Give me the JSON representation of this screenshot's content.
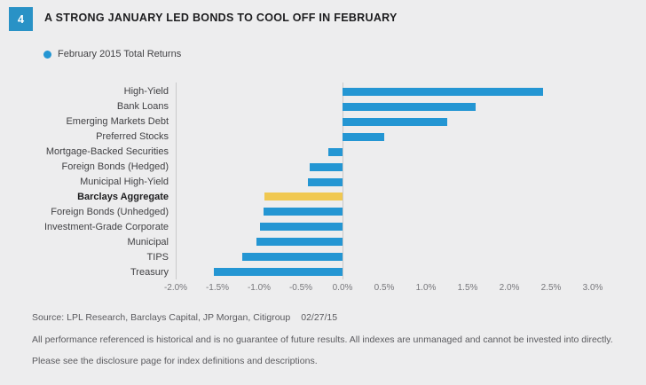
{
  "header": {
    "badge": "4",
    "title": "A STRONG JANUARY LED BONDS TO COOL OFF IN FEBRUARY"
  },
  "legend": {
    "label": "February 2015 Total Returns"
  },
  "chart_data": {
    "type": "bar",
    "orientation": "horizontal",
    "title": "A STRONG JANUARY LED BONDS TO COOL OFF IN FEBRUARY",
    "legend_entry": "February 2015 Total Returns",
    "categories": [
      "High-Yield",
      "Bank Loans",
      "Emerging Markets Debt",
      "Preferred Stocks",
      "Mortgage-Backed Securities",
      "Foreign Bonds (Hedged)",
      "Municipal High-Yield",
      "Barclays Aggregate",
      "Foreign Bonds (Unhedged)",
      "Investment-Grade Corporate",
      "Municipal",
      "TIPS",
      "Treasury"
    ],
    "values": [
      2.4,
      1.6,
      1.25,
      0.5,
      -0.17,
      -0.39,
      -0.41,
      -0.94,
      -0.95,
      -0.99,
      -1.03,
      -1.2,
      -1.54
    ],
    "unit": "%",
    "highlight_category": "Barclays Aggregate",
    "bar_color": "#2496d3",
    "highlight_color": "#f0c851",
    "xlim": [
      -2,
      3
    ],
    "x_tick_values": [
      -2,
      -1.5,
      -1,
      -0.5,
      0,
      0.5,
      1,
      1.5,
      2,
      2.5,
      3
    ],
    "x_tick_labels": [
      "-2.0%",
      "-1.5%",
      "-1.0%",
      "-0.5%",
      "0.0%",
      "0.5%",
      "1.0%",
      "1.5%",
      "2.0%",
      "2.5%",
      "3.0%"
    ],
    "gridlines_at": [
      -2,
      0
    ],
    "legend_position": "top-left"
  },
  "footer": {
    "source": "Source: LPL Research, Barclays Capital, JP Morgan, Citigroup",
    "date": "02/27/15",
    "disclaimer_1": "All performance referenced is historical and is no guarantee of future results. All indexes are unmanaged and cannot be invested into directly.",
    "disclaimer_2": "Please see the disclosure page for index definitions and descriptions."
  }
}
